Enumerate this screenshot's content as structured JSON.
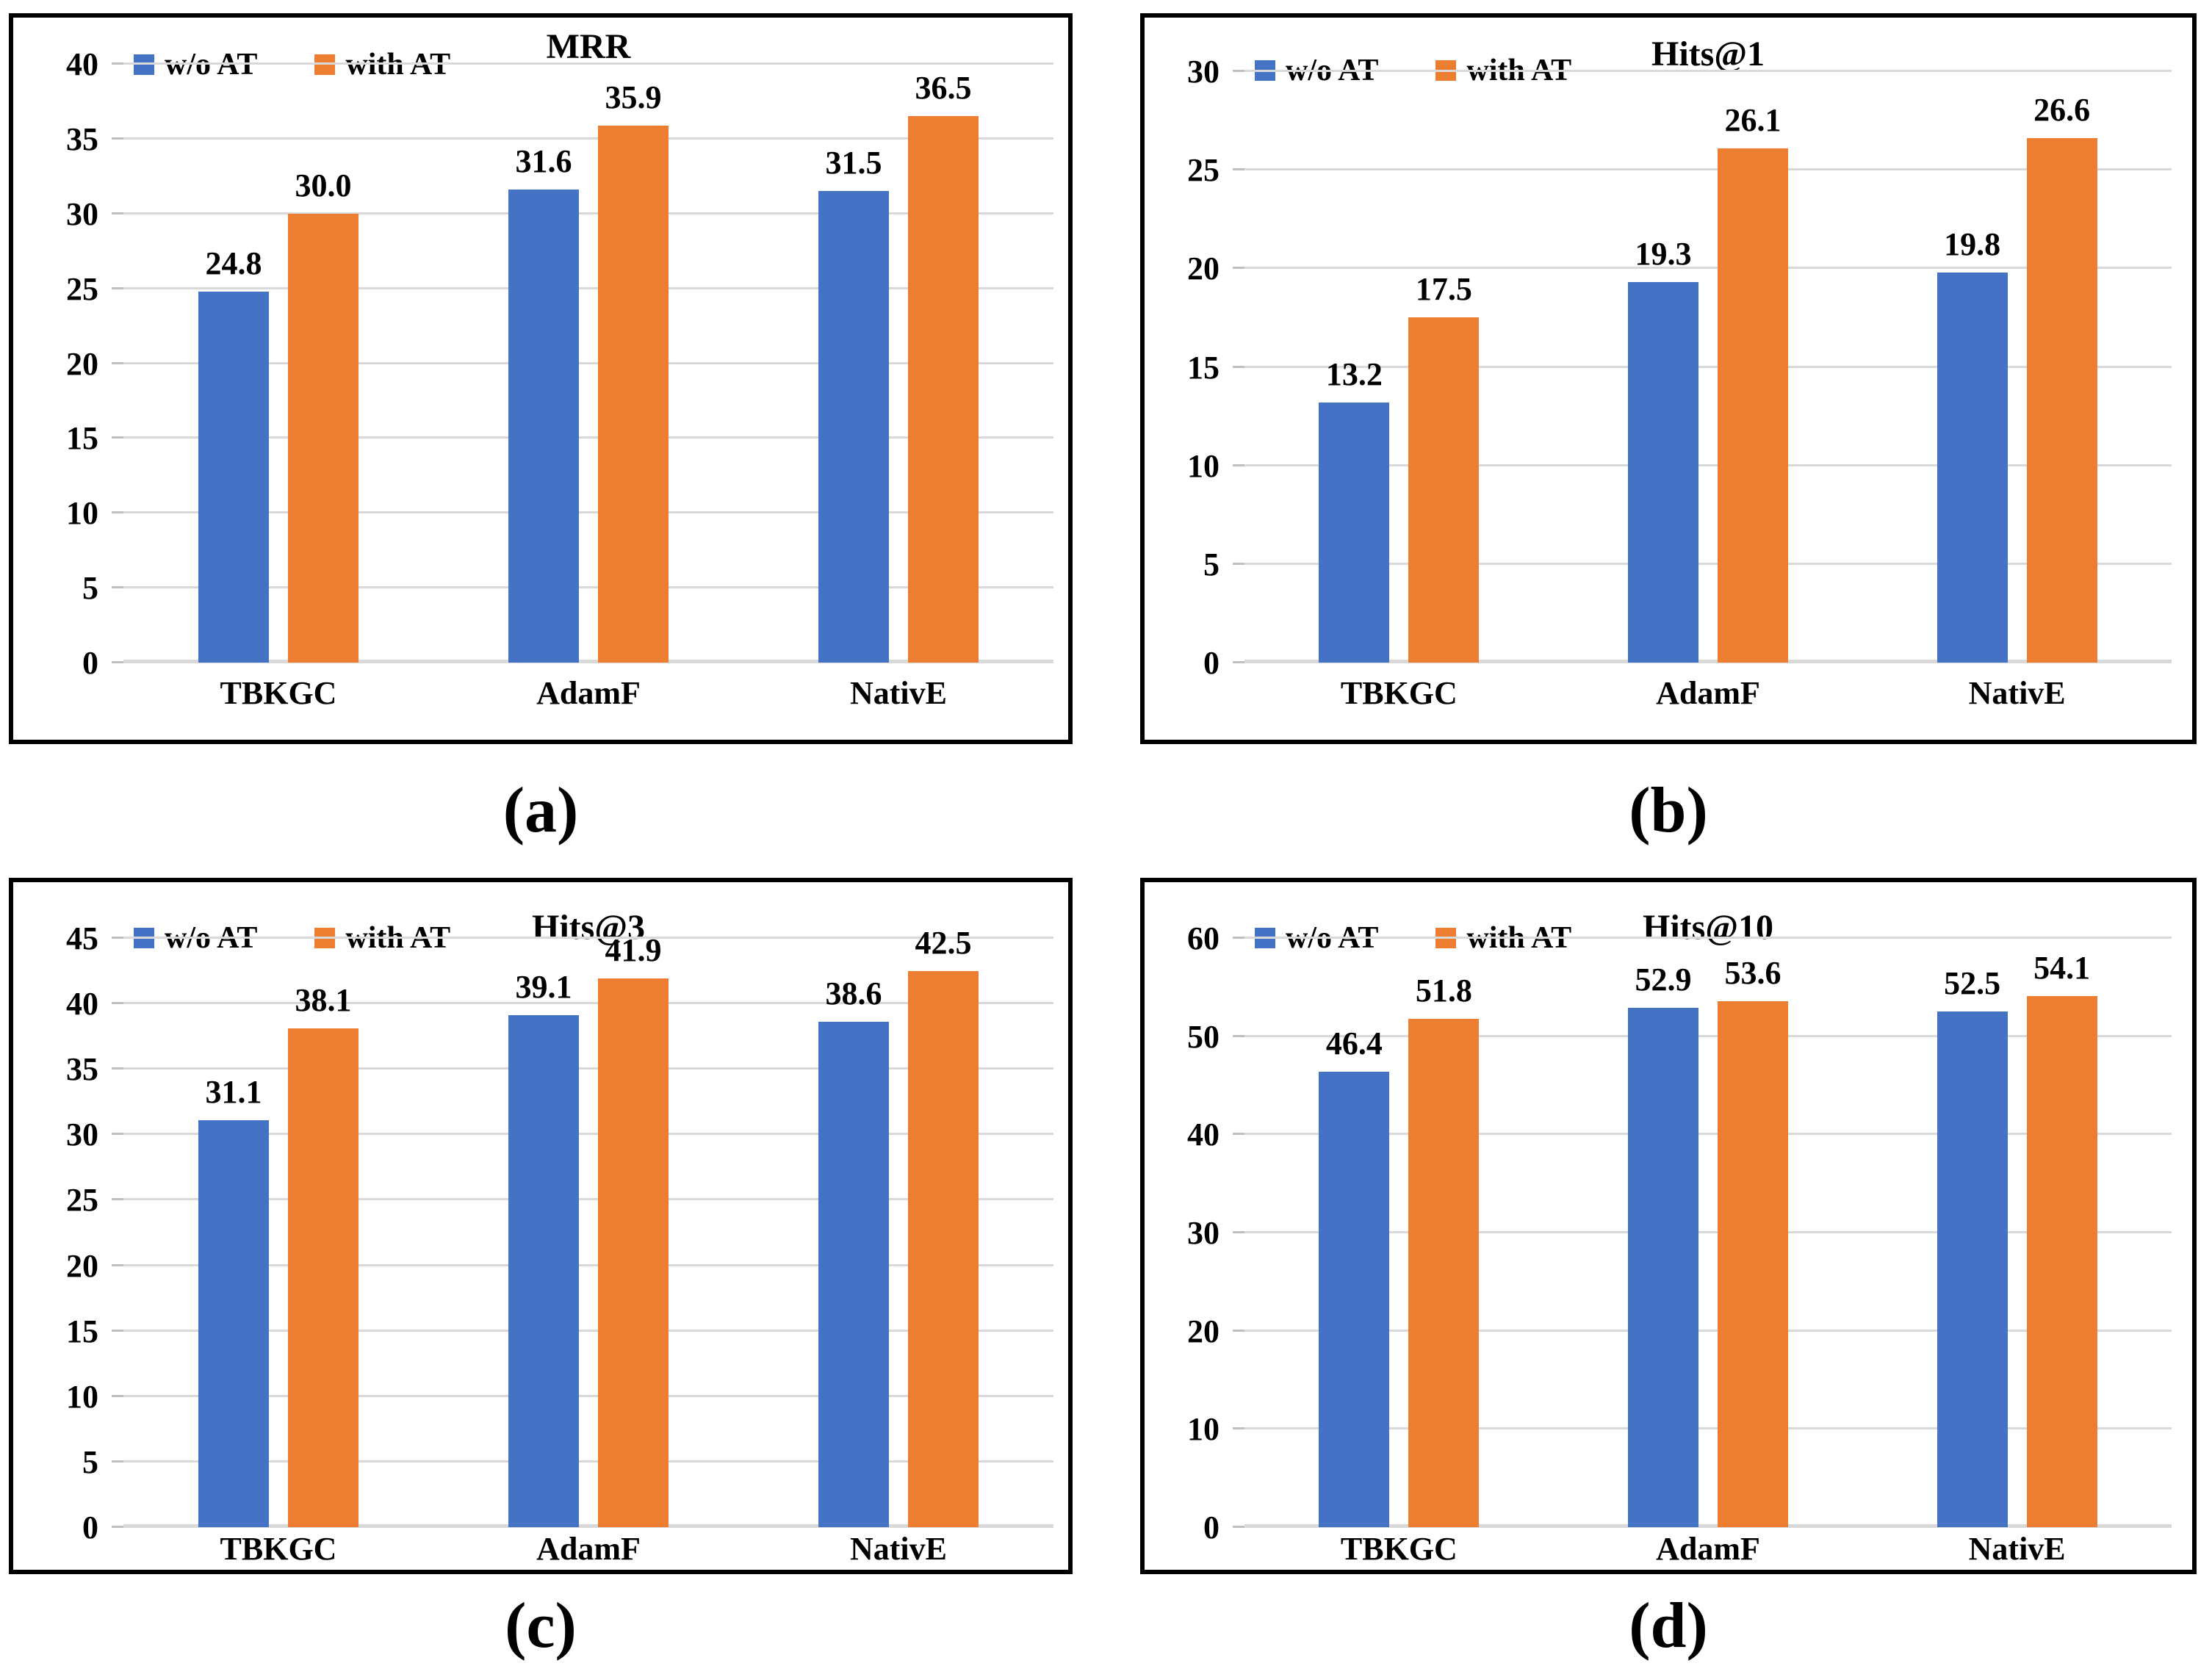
{
  "page": {
    "background": "#ffffff"
  },
  "colors": {
    "series": [
      "#4472C4",
      "#ED7D31"
    ],
    "gridline": "#D9D9D9",
    "tick_stub": "#BFBFBF",
    "panel_border": "#000000",
    "text": "#000000"
  },
  "legend": {
    "items": [
      {
        "label": "w/o AT",
        "color": "#4472C4"
      },
      {
        "label": "with AT",
        "color": "#ED7D31"
      }
    ]
  },
  "chart_data": [
    {
      "type": "bar",
      "title": "MRR",
      "caption": "(a)",
      "categories": [
        "TBKGC",
        "AdamF",
        "NativE"
      ],
      "series": [
        {
          "name": "w/o AT",
          "values": [
            24.8,
            31.6,
            31.5
          ]
        },
        {
          "name": "with AT",
          "values": [
            30.0,
            35.9,
            36.5
          ]
        }
      ],
      "ylim": [
        0,
        40
      ],
      "ystep": 5,
      "ytick_labels": [
        "0",
        "5",
        "10",
        "15",
        "20",
        "25",
        "30",
        "35",
        "40"
      ],
      "grid": true,
      "legend_position": "top-left",
      "value_label_decimals": 1
    },
    {
      "type": "bar",
      "title": "Hits@1",
      "caption": "(b)",
      "categories": [
        "TBKGC",
        "AdamF",
        "NativE"
      ],
      "series": [
        {
          "name": "w/o AT",
          "values": [
            13.2,
            19.3,
            19.8
          ]
        },
        {
          "name": "with AT",
          "values": [
            17.5,
            26.1,
            26.6
          ]
        }
      ],
      "ylim": [
        0,
        30
      ],
      "ystep": 5,
      "ytick_labels": [
        "0",
        "5",
        "10",
        "15",
        "20",
        "25",
        "30"
      ],
      "grid": true,
      "legend_position": "top-left",
      "value_label_decimals": 1
    },
    {
      "type": "bar",
      "title": "Hits@3",
      "caption": "(c)",
      "categories": [
        "TBKGC",
        "AdamF",
        "NativE"
      ],
      "series": [
        {
          "name": "w/o AT",
          "values": [
            31.1,
            39.1,
            38.6
          ]
        },
        {
          "name": "with AT",
          "values": [
            38.1,
            41.9,
            42.5
          ]
        }
      ],
      "ylim": [
        0,
        45
      ],
      "ystep": 5,
      "ytick_labels": [
        "0",
        "5",
        "10",
        "15",
        "20",
        "25",
        "30",
        "35",
        "40",
        "45"
      ],
      "grid": true,
      "legend_position": "top-left",
      "value_label_decimals": 1
    },
    {
      "type": "bar",
      "title": "Hits@10",
      "caption": "(d)",
      "categories": [
        "TBKGC",
        "AdamF",
        "NativE"
      ],
      "series": [
        {
          "name": "w/o AT",
          "values": [
            46.4,
            52.9,
            52.5
          ]
        },
        {
          "name": "with AT",
          "values": [
            51.8,
            53.6,
            54.1
          ]
        }
      ],
      "ylim": [
        0,
        60
      ],
      "ystep": 10,
      "ytick_labels": [
        "0",
        "10",
        "20",
        "30",
        "40",
        "50",
        "60"
      ],
      "grid": true,
      "legend_position": "top-left",
      "value_label_decimals": 1
    }
  ]
}
